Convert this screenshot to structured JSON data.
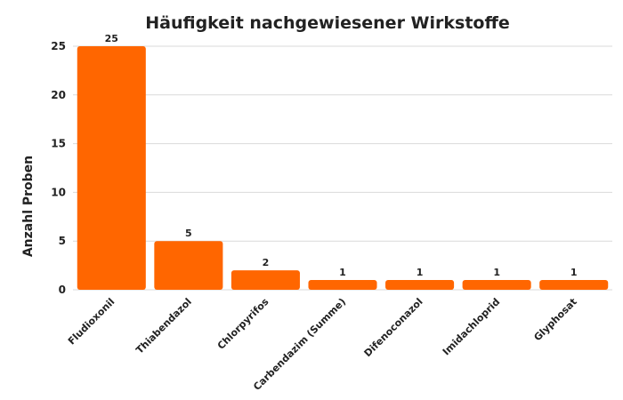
{
  "chart_data": {
    "type": "bar",
    "title": "Häufigkeit nachgewiesener Wirkstoffe",
    "xlabel": "",
    "ylabel": "Anzahl Proben",
    "categories": [
      "Fludioxonil",
      "Thiabendazol",
      "Chlorpyrifos",
      "Carbendazim (Summe)",
      "Difenoconazol",
      "Imidachloprid",
      "Glyphosat"
    ],
    "values": [
      25,
      5,
      2,
      1,
      1,
      1,
      1
    ],
    "ylim": [
      0,
      25
    ],
    "yticks": [
      0,
      5,
      10,
      15,
      20,
      25
    ],
    "grid": true,
    "bar_color": "#ff6600",
    "data_labels": true
  }
}
